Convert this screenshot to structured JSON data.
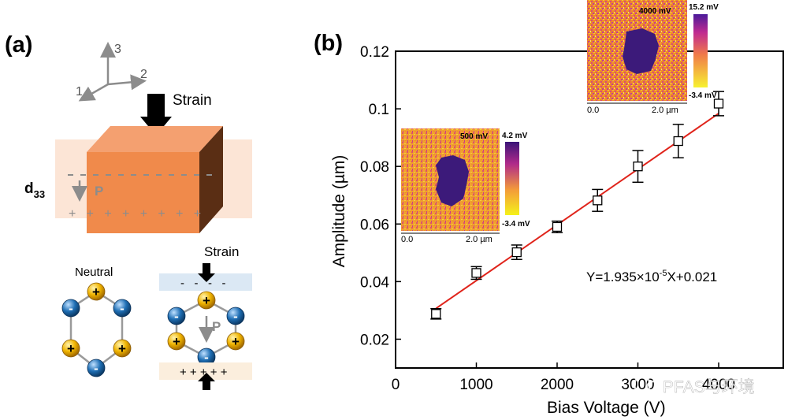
{
  "panel_a": {
    "label": "(a)",
    "axes": {
      "one": "1",
      "two": "2",
      "three": "3"
    },
    "strain_label": "Strain",
    "d_label": "d",
    "d_sub": "33",
    "p_label": "P",
    "plus_row": "+   +   +   +   +   +   +   +",
    "neutral_label": "Neutral",
    "strain_label_2": "Strain",
    "minus_row": "-   -   -   -",
    "p_label_2": "P",
    "plus_row_2": "+ + + + +",
    "plus_sign": "+",
    "minus_sign": "-",
    "colors": {
      "block": "#f08a4b",
      "block_top": "#f4a070",
      "block_side": "#5a2e14",
      "film": "#fbe1cf",
      "cation": "#f0b400",
      "anion": "#1f6fb5",
      "bond": "#9a9a9a"
    }
  },
  "panel_b": {
    "label": "(b)",
    "equation_prefix": "Y=1.935×10",
    "equation_exp": "-5",
    "equation_suffix": "X+0.021",
    "inset_small": {
      "title": "500 mV",
      "cbar_max": "4.2 mV",
      "cbar_min": "-3.4 mV",
      "x0": "0.0",
      "x1": "2.0 µm"
    },
    "inset_large": {
      "title": "4000 mV",
      "cbar_max": "15.2 mV",
      "cbar_min": "-3.4 mV",
      "x0": "0.0",
      "x1": "2.0 µm"
    },
    "watermark": "PFAS与环境"
  },
  "chart_data": {
    "type": "scatter",
    "xlabel": "Bias Voltage (V)",
    "ylabel": "Amplitude (µm)",
    "xlim": [
      0,
      4800
    ],
    "ylim": [
      0.01,
      0.12
    ],
    "x_ticks": [
      0,
      1000,
      2000,
      3000,
      4000
    ],
    "y_ticks": [
      0.02,
      0.04,
      0.06,
      0.08,
      0.1,
      0.12
    ],
    "y_tick_labels": [
      "0.02",
      "0.04",
      "0.06",
      "0.08",
      "0.1",
      "0.12"
    ],
    "x_tick_labels": [
      "0",
      "1000",
      "2000",
      "3000",
      "4000"
    ],
    "points": [
      {
        "x": 500,
        "y": 0.0288,
        "err": 0.0018
      },
      {
        "x": 1000,
        "y": 0.043,
        "err": 0.0022
      },
      {
        "x": 1500,
        "y": 0.0502,
        "err": 0.0025
      },
      {
        "x": 2000,
        "y": 0.059,
        "err": 0.002
      },
      {
        "x": 2500,
        "y": 0.0682,
        "err": 0.0038
      },
      {
        "x": 3000,
        "y": 0.08,
        "err": 0.0055
      },
      {
        "x": 3500,
        "y": 0.0888,
        "err": 0.0058
      },
      {
        "x": 4000,
        "y": 0.1018,
        "err": 0.0042
      }
    ],
    "fit": {
      "slope": 1.935e-05,
      "intercept": 0.021,
      "x_range": [
        500,
        4000
      ],
      "color": "#e0241b"
    }
  }
}
